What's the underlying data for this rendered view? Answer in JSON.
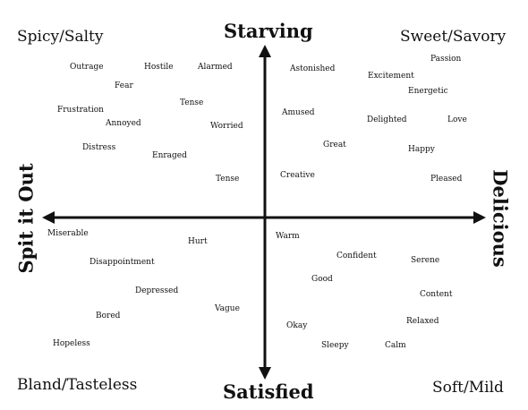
{
  "axis_labels": {
    "top": "Starving",
    "bottom": "Satisfied",
    "left": "Spit it Out",
    "right": "Delicious"
  },
  "corners": {
    "top_left": "Spicy/Salty",
    "top_right": "Sweet/Savory",
    "bottom_left": "Bland/Tasteless",
    "bottom_right": "Soft/Mild"
  },
  "words": {
    "top_left": [
      "Outrage",
      "Hostile",
      "Alarmed",
      "Fear",
      "Tense",
      "Frustration",
      "Annoyed",
      "Worried",
      "Distress",
      "Enraged",
      "Tense"
    ],
    "top_right": [
      "Astonished",
      "Passion",
      "Excitement",
      "Energetic",
      "Amused",
      "Delighted",
      "Love",
      "Great",
      "Happy",
      "Creative",
      "Pleased"
    ],
    "bottom_left": [
      "Miserable",
      "Hurt",
      "Disappointment",
      "Depressed",
      "Vague",
      "Bored",
      "Hopeless"
    ],
    "bottom_right": [
      "Warm",
      "Confident",
      "Serene",
      "Good",
      "Content",
      "Okay",
      "Relaxed",
      "Sleepy",
      "Calm"
    ]
  }
}
